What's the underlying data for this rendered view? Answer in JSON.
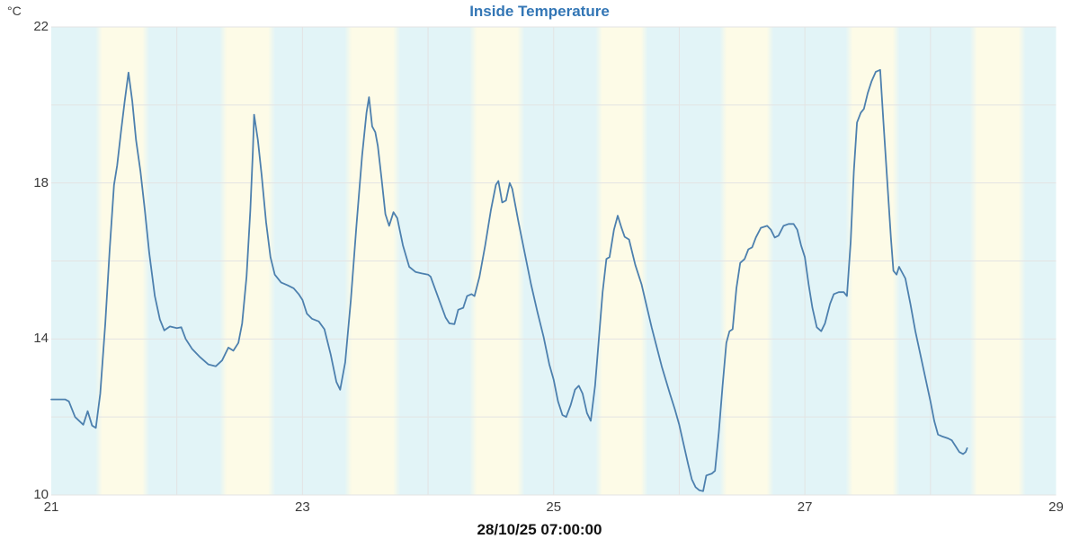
{
  "chart_data": {
    "type": "line",
    "title": "Inside Temperature",
    "ylabel": "°C",
    "last_point_label": "28/10/25 07:00:00",
    "ylim": [
      10,
      22
    ],
    "y_gridline_step": 2,
    "y_tick_values": [
      10,
      14,
      18,
      22
    ],
    "y_tick_labels": [
      "10",
      "14",
      "18",
      "22"
    ],
    "xlim_days": [
      0,
      8
    ],
    "x_gridline_step_days": 1,
    "x_ticks": [
      {
        "label": "21",
        "day": 0
      },
      {
        "label": "23",
        "day": 2
      },
      {
        "label": "25",
        "day": 4
      },
      {
        "label": "27",
        "day": 6
      },
      {
        "label": "29",
        "day": 8
      }
    ],
    "colors": {
      "title": "#3376b5",
      "line": "#4d80ae",
      "night_band": "#e2f4f7",
      "day_band": "#fdfbe7",
      "gridline": "#e3e3e3",
      "tick_text": "#3a3a3a",
      "footer_text": "#111111"
    },
    "day_night_bands": {
      "note": "daylight intervals in days since first tick (21 Oct 00:00)",
      "day_intervals": [
        [
          0.351,
          0.781
        ],
        [
          1.34,
          1.784
        ],
        [
          2.335,
          2.779
        ],
        [
          3.331,
          3.768
        ],
        [
          4.334,
          4.749
        ],
        [
          5.322,
          5.752
        ],
        [
          6.325,
          6.755
        ],
        [
          7.314,
          7.758
        ]
      ]
    },
    "series": [
      {
        "name": "Inside Temperature",
        "points": [
          [
            0.0,
            12.45
          ],
          [
            0.06,
            12.45
          ],
          [
            0.11,
            12.45
          ],
          [
            0.14,
            12.4
          ],
          [
            0.19,
            12.0
          ],
          [
            0.255,
            11.8
          ],
          [
            0.29,
            12.15
          ],
          [
            0.325,
            11.78
          ],
          [
            0.355,
            11.72
          ],
          [
            0.39,
            12.6
          ],
          [
            0.43,
            14.4
          ],
          [
            0.465,
            16.3
          ],
          [
            0.5,
            17.95
          ],
          [
            0.525,
            18.45
          ],
          [
            0.555,
            19.3
          ],
          [
            0.585,
            20.1
          ],
          [
            0.615,
            20.83
          ],
          [
            0.645,
            20.1
          ],
          [
            0.675,
            19.1
          ],
          [
            0.71,
            18.3
          ],
          [
            0.745,
            17.3
          ],
          [
            0.78,
            16.2
          ],
          [
            0.825,
            15.1
          ],
          [
            0.865,
            14.5
          ],
          [
            0.9,
            14.22
          ],
          [
            0.945,
            14.32
          ],
          [
            1.0,
            14.28
          ],
          [
            1.035,
            14.3
          ],
          [
            1.07,
            14.0
          ],
          [
            1.12,
            13.75
          ],
          [
            1.18,
            13.55
          ],
          [
            1.25,
            13.35
          ],
          [
            1.31,
            13.3
          ],
          [
            1.36,
            13.45
          ],
          [
            1.41,
            13.78
          ],
          [
            1.45,
            13.7
          ],
          [
            1.49,
            13.9
          ],
          [
            1.52,
            14.4
          ],
          [
            1.555,
            15.6
          ],
          [
            1.585,
            17.3
          ],
          [
            1.605,
            18.8
          ],
          [
            1.615,
            19.75
          ],
          [
            1.645,
            19.1
          ],
          [
            1.675,
            18.2
          ],
          [
            1.71,
            17.0
          ],
          [
            1.745,
            16.1
          ],
          [
            1.78,
            15.65
          ],
          [
            1.83,
            15.45
          ],
          [
            1.88,
            15.38
          ],
          [
            1.93,
            15.3
          ],
          [
            1.97,
            15.15
          ],
          [
            2.0,
            15.0
          ],
          [
            2.035,
            14.65
          ],
          [
            2.075,
            14.52
          ],
          [
            2.13,
            14.45
          ],
          [
            2.175,
            14.25
          ],
          [
            2.225,
            13.6
          ],
          [
            2.27,
            12.9
          ],
          [
            2.3,
            12.7
          ],
          [
            2.34,
            13.4
          ],
          [
            2.385,
            15.0
          ],
          [
            2.43,
            16.9
          ],
          [
            2.475,
            18.7
          ],
          [
            2.51,
            19.8
          ],
          [
            2.53,
            20.2
          ],
          [
            2.555,
            19.45
          ],
          [
            2.58,
            19.3
          ],
          [
            2.6,
            18.95
          ],
          [
            2.63,
            18.1
          ],
          [
            2.66,
            17.2
          ],
          [
            2.69,
            16.9
          ],
          [
            2.725,
            17.25
          ],
          [
            2.755,
            17.1
          ],
          [
            2.8,
            16.4
          ],
          [
            2.85,
            15.85
          ],
          [
            2.9,
            15.72
          ],
          [
            2.95,
            15.68
          ],
          [
            3.0,
            15.65
          ],
          [
            3.02,
            15.6
          ],
          [
            3.06,
            15.25
          ],
          [
            3.1,
            14.9
          ],
          [
            3.14,
            14.55
          ],
          [
            3.17,
            14.4
          ],
          [
            3.21,
            14.38
          ],
          [
            3.24,
            14.75
          ],
          [
            3.28,
            14.8
          ],
          [
            3.31,
            15.1
          ],
          [
            3.345,
            15.15
          ],
          [
            3.37,
            15.1
          ],
          [
            3.41,
            15.6
          ],
          [
            3.455,
            16.4
          ],
          [
            3.5,
            17.3
          ],
          [
            3.54,
            17.95
          ],
          [
            3.56,
            18.05
          ],
          [
            3.59,
            17.5
          ],
          [
            3.62,
            17.55
          ],
          [
            3.65,
            18.0
          ],
          [
            3.67,
            17.85
          ],
          [
            3.72,
            17.0
          ],
          [
            3.77,
            16.2
          ],
          [
            3.82,
            15.4
          ],
          [
            3.87,
            14.7
          ],
          [
            3.92,
            14.05
          ],
          [
            3.965,
            13.35
          ],
          [
            4.0,
            12.95
          ],
          [
            4.035,
            12.4
          ],
          [
            4.07,
            12.05
          ],
          [
            4.1,
            12.0
          ],
          [
            4.135,
            12.3
          ],
          [
            4.17,
            12.7
          ],
          [
            4.2,
            12.8
          ],
          [
            4.23,
            12.6
          ],
          [
            4.265,
            12.1
          ],
          [
            4.295,
            11.9
          ],
          [
            4.33,
            12.8
          ],
          [
            4.36,
            14.0
          ],
          [
            4.39,
            15.2
          ],
          [
            4.42,
            16.05
          ],
          [
            4.445,
            16.1
          ],
          [
            4.48,
            16.8
          ],
          [
            4.51,
            17.16
          ],
          [
            4.54,
            16.85
          ],
          [
            4.565,
            16.62
          ],
          [
            4.6,
            16.55
          ],
          [
            4.65,
            15.9
          ],
          [
            4.7,
            15.4
          ],
          [
            4.78,
            14.3
          ],
          [
            4.86,
            13.3
          ],
          [
            4.925,
            12.6
          ],
          [
            4.965,
            12.2
          ],
          [
            5.0,
            11.8
          ],
          [
            5.035,
            11.3
          ],
          [
            5.07,
            10.8
          ],
          [
            5.1,
            10.4
          ],
          [
            5.13,
            10.2
          ],
          [
            5.16,
            10.12
          ],
          [
            5.19,
            10.1
          ],
          [
            5.215,
            10.5
          ],
          [
            5.26,
            10.55
          ],
          [
            5.285,
            10.62
          ],
          [
            5.315,
            11.6
          ],
          [
            5.345,
            12.8
          ],
          [
            5.375,
            13.9
          ],
          [
            5.4,
            14.2
          ],
          [
            5.425,
            14.25
          ],
          [
            5.455,
            15.3
          ],
          [
            5.485,
            15.95
          ],
          [
            5.52,
            16.05
          ],
          [
            5.55,
            16.3
          ],
          [
            5.58,
            16.35
          ],
          [
            5.61,
            16.6
          ],
          [
            5.65,
            16.85
          ],
          [
            5.7,
            16.9
          ],
          [
            5.73,
            16.8
          ],
          [
            5.76,
            16.6
          ],
          [
            5.79,
            16.65
          ],
          [
            5.83,
            16.9
          ],
          [
            5.87,
            16.95
          ],
          [
            5.91,
            16.95
          ],
          [
            5.94,
            16.8
          ],
          [
            5.97,
            16.4
          ],
          [
            6.0,
            16.1
          ],
          [
            6.03,
            15.4
          ],
          [
            6.06,
            14.8
          ],
          [
            6.095,
            14.3
          ],
          [
            6.13,
            14.2
          ],
          [
            6.16,
            14.4
          ],
          [
            6.2,
            14.9
          ],
          [
            6.23,
            15.15
          ],
          [
            6.27,
            15.2
          ],
          [
            6.31,
            15.2
          ],
          [
            6.335,
            15.1
          ],
          [
            6.365,
            16.5
          ],
          [
            6.39,
            18.3
          ],
          [
            6.415,
            19.55
          ],
          [
            6.445,
            19.8
          ],
          [
            6.47,
            19.9
          ],
          [
            6.5,
            20.3
          ],
          [
            6.53,
            20.6
          ],
          [
            6.565,
            20.85
          ],
          [
            6.6,
            20.9
          ],
          [
            6.625,
            19.6
          ],
          [
            6.655,
            18.1
          ],
          [
            6.685,
            16.6
          ],
          [
            6.705,
            15.75
          ],
          [
            6.73,
            15.65
          ],
          [
            6.75,
            15.85
          ],
          [
            6.775,
            15.7
          ],
          [
            6.8,
            15.55
          ],
          [
            6.84,
            14.9
          ],
          [
            6.88,
            14.2
          ],
          [
            6.92,
            13.6
          ],
          [
            6.96,
            13.0
          ],
          [
            7.0,
            12.4
          ],
          [
            7.03,
            11.9
          ],
          [
            7.06,
            11.55
          ],
          [
            7.095,
            11.5
          ],
          [
            7.14,
            11.45
          ],
          [
            7.17,
            11.4
          ],
          [
            7.2,
            11.25
          ],
          [
            7.23,
            11.1
          ],
          [
            7.26,
            11.05
          ],
          [
            7.28,
            11.1
          ],
          [
            7.292,
            11.2
          ]
        ]
      }
    ]
  }
}
